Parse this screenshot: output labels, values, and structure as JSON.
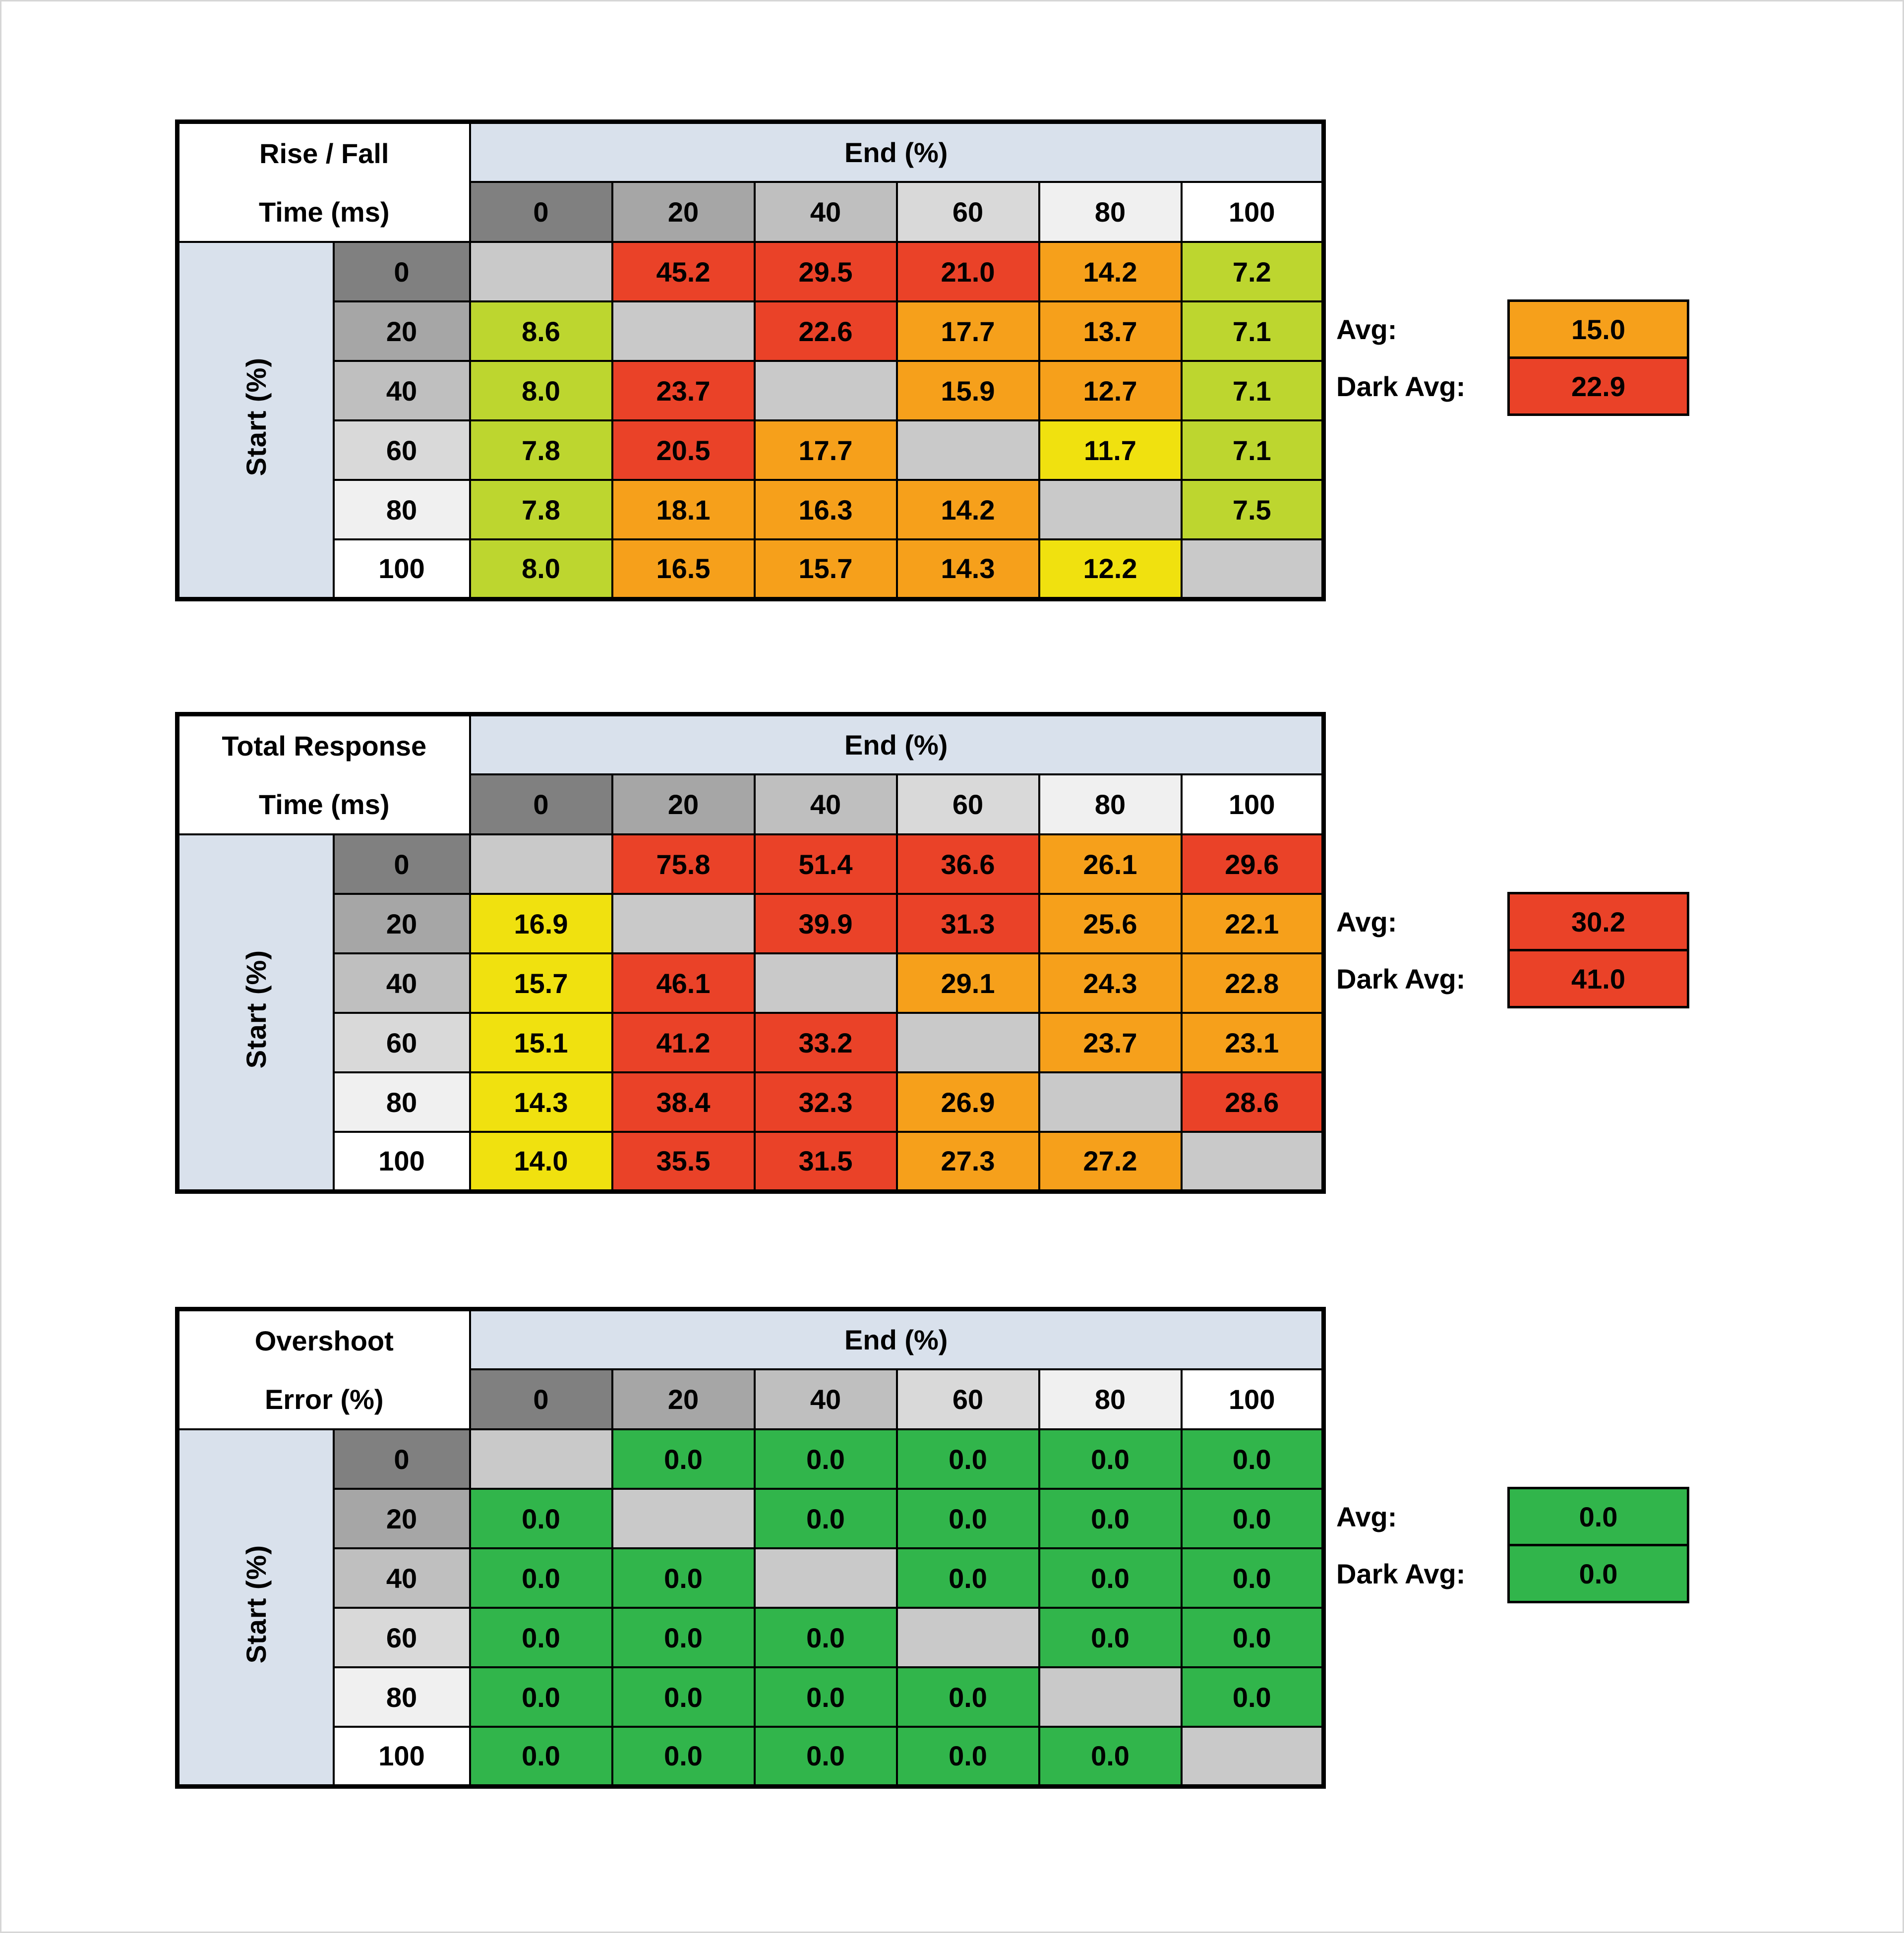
{
  "colors": {
    "red": "#ea4228",
    "orange": "#f6a01b",
    "yellow": "#f0e10f",
    "yg": "#bdd62f",
    "green": "#31b54b",
    "diag": "#c9c9c9",
    "header_blue": "#d9e1ec",
    "shades": [
      "#808080",
      "#a6a6a6",
      "#bfbfbf",
      "#d9d9d9",
      "#f0f0f0",
      "#ffffff"
    ]
  },
  "chart_data": [
    {
      "type": "heatmap",
      "id": "rise-fall",
      "title": [
        "Rise / Fall",
        "Time (ms)"
      ],
      "x_axis_label": "End (%)",
      "y_axis_label": "Start (%)",
      "x_ticks": [
        "0",
        "20",
        "40",
        "60",
        "80",
        "100"
      ],
      "y_ticks": [
        "0",
        "20",
        "40",
        "60",
        "80",
        "100"
      ],
      "values": [
        [
          null,
          "45.2",
          "29.5",
          "21.0",
          "14.2",
          "7.2"
        ],
        [
          "8.6",
          null,
          "22.6",
          "17.7",
          "13.7",
          "7.1"
        ],
        [
          "8.0",
          "23.7",
          null,
          "15.9",
          "12.7",
          "7.1"
        ],
        [
          "7.8",
          "20.5",
          "17.7",
          null,
          "11.7",
          "7.1"
        ],
        [
          "7.8",
          "18.1",
          "16.3",
          "14.2",
          null,
          "7.5"
        ],
        [
          "8.0",
          "16.5",
          "15.7",
          "14.3",
          "12.2",
          null
        ]
      ],
      "cell_colors": [
        [
          null,
          "red",
          "red",
          "red",
          "orange",
          "yg"
        ],
        [
          "yg",
          null,
          "red",
          "orange",
          "orange",
          "yg"
        ],
        [
          "yg",
          "red",
          null,
          "orange",
          "orange",
          "yg"
        ],
        [
          "yg",
          "red",
          "orange",
          null,
          "yellow",
          "yg"
        ],
        [
          "yg",
          "orange",
          "orange",
          "orange",
          null,
          "yg"
        ],
        [
          "yg",
          "orange",
          "orange",
          "orange",
          "yellow",
          null
        ]
      ],
      "avg": {
        "label": "Avg:",
        "value": "15.0",
        "color": "orange"
      },
      "dark_avg": {
        "label": "Dark Avg:",
        "value": "22.9",
        "color": "red"
      }
    },
    {
      "type": "heatmap",
      "id": "total-response",
      "title": [
        "Total Response",
        "Time (ms)"
      ],
      "x_axis_label": "End (%)",
      "y_axis_label": "Start (%)",
      "x_ticks": [
        "0",
        "20",
        "40",
        "60",
        "80",
        "100"
      ],
      "y_ticks": [
        "0",
        "20",
        "40",
        "60",
        "80",
        "100"
      ],
      "values": [
        [
          null,
          "75.8",
          "51.4",
          "36.6",
          "26.1",
          "29.6"
        ],
        [
          "16.9",
          null,
          "39.9",
          "31.3",
          "25.6",
          "22.1"
        ],
        [
          "15.7",
          "46.1",
          null,
          "29.1",
          "24.3",
          "22.8"
        ],
        [
          "15.1",
          "41.2",
          "33.2",
          null,
          "23.7",
          "23.1"
        ],
        [
          "14.3",
          "38.4",
          "32.3",
          "26.9",
          null,
          "28.6"
        ],
        [
          "14.0",
          "35.5",
          "31.5",
          "27.3",
          "27.2",
          null
        ]
      ],
      "cell_colors": [
        [
          null,
          "red",
          "red",
          "red",
          "orange",
          "red"
        ],
        [
          "yellow",
          null,
          "red",
          "red",
          "orange",
          "orange"
        ],
        [
          "yellow",
          "red",
          null,
          "orange",
          "orange",
          "orange"
        ],
        [
          "yellow",
          "red",
          "red",
          null,
          "orange",
          "orange"
        ],
        [
          "yellow",
          "red",
          "red",
          "orange",
          null,
          "red"
        ],
        [
          "yellow",
          "red",
          "red",
          "orange",
          "orange",
          null
        ]
      ],
      "avg": {
        "label": "Avg:",
        "value": "30.2",
        "color": "red"
      },
      "dark_avg": {
        "label": "Dark Avg:",
        "value": "41.0",
        "color": "red"
      }
    },
    {
      "type": "heatmap",
      "id": "overshoot",
      "title": [
        "Overshoot",
        "Error (%)"
      ],
      "x_axis_label": "End (%)",
      "y_axis_label": "Start (%)",
      "x_ticks": [
        "0",
        "20",
        "40",
        "60",
        "80",
        "100"
      ],
      "y_ticks": [
        "0",
        "20",
        "40",
        "60",
        "80",
        "100"
      ],
      "values": [
        [
          null,
          "0.0",
          "0.0",
          "0.0",
          "0.0",
          "0.0"
        ],
        [
          "0.0",
          null,
          "0.0",
          "0.0",
          "0.0",
          "0.0"
        ],
        [
          "0.0",
          "0.0",
          null,
          "0.0",
          "0.0",
          "0.0"
        ],
        [
          "0.0",
          "0.0",
          "0.0",
          null,
          "0.0",
          "0.0"
        ],
        [
          "0.0",
          "0.0",
          "0.0",
          "0.0",
          null,
          "0.0"
        ],
        [
          "0.0",
          "0.0",
          "0.0",
          "0.0",
          "0.0",
          null
        ]
      ],
      "cell_colors": [
        [
          null,
          "green",
          "green",
          "green",
          "green",
          "green"
        ],
        [
          "green",
          null,
          "green",
          "green",
          "green",
          "green"
        ],
        [
          "green",
          "green",
          null,
          "green",
          "green",
          "green"
        ],
        [
          "green",
          "green",
          "green",
          null,
          "green",
          "green"
        ],
        [
          "green",
          "green",
          "green",
          "green",
          null,
          "green"
        ],
        [
          "green",
          "green",
          "green",
          "green",
          "green",
          null
        ]
      ],
      "avg": {
        "label": "Avg:",
        "value": "0.0",
        "color": "green"
      },
      "dark_avg": {
        "label": "Dark Avg:",
        "value": "0.0",
        "color": "green"
      }
    }
  ]
}
